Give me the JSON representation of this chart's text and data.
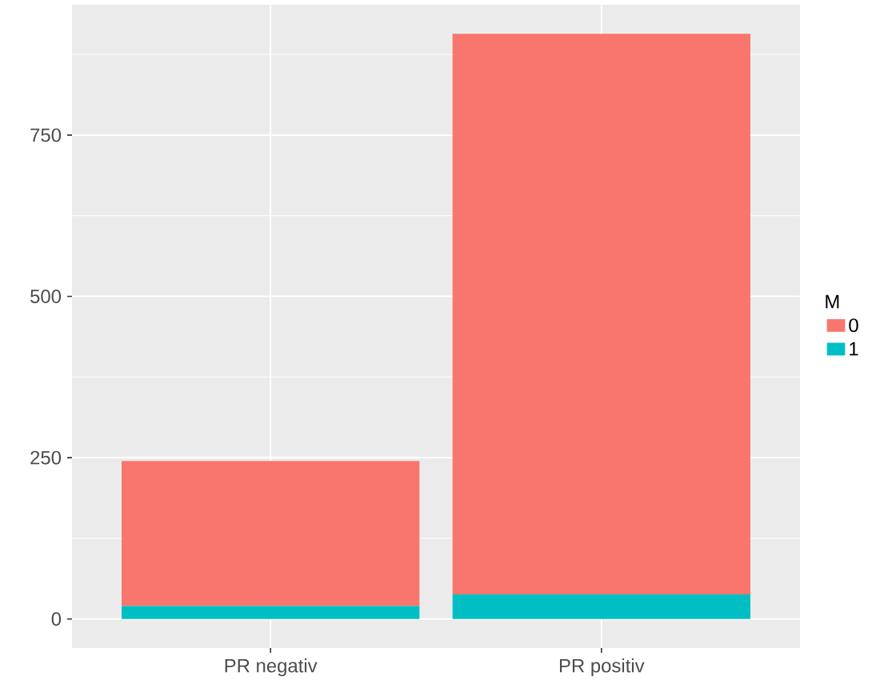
{
  "chart_data": {
    "type": "bar",
    "stacked": true,
    "categories": [
      "PR negativ",
      "PR positiv"
    ],
    "series": [
      {
        "name": "1",
        "color": "#00BFC4",
        "values": [
          20,
          38
        ]
      },
      {
        "name": "0",
        "color": "#F8766D",
        "values": [
          225,
          869
        ]
      }
    ],
    "legend_title": "M",
    "legend": "right",
    "grid": true,
    "ylim": [
      -45,
      952
    ],
    "yticks": [
      0,
      250,
      500,
      750
    ]
  }
}
